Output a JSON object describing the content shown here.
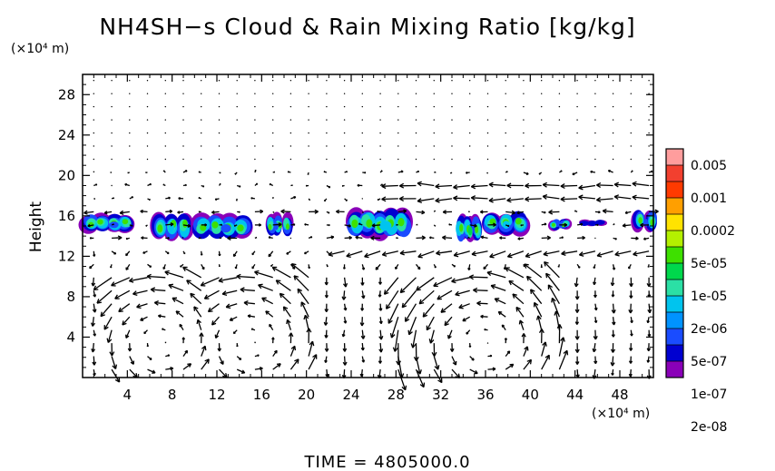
{
  "chart_data": {
    "type": "heatmap",
    "title": "NH4SH−s Cloud & Rain Mixing Ratio [kg/kg]",
    "x_unit": "(×10⁴ m)",
    "y_unit": "(×10⁴ m)",
    "ylabel": "Height",
    "xlim": [
      0,
      51
    ],
    "ylim": [
      0,
      30
    ],
    "x_ticks": [
      4,
      8,
      12,
      16,
      20,
      24,
      28,
      32,
      36,
      40,
      44,
      48
    ],
    "y_ticks": [
      4,
      8,
      12,
      16,
      20,
      24,
      28
    ],
    "grid": false,
    "colorbar": {
      "labels": [
        "0.005",
        "0.001",
        "0.0002",
        "5e-05",
        "1e-05",
        "2e-06",
        "5e-07",
        "1e-07",
        "2e-08"
      ],
      "colors": [
        "#ff9d9d",
        "#f2402f",
        "#ff3a00",
        "#ff9f00",
        "#ffe300",
        "#b4f000",
        "#3ee000",
        "#00d84c",
        "#2be0a5",
        "#00c4ee",
        "#0093ff",
        "#1a4cff",
        "#0000d0",
        "#8a00b8"
      ],
      "placement": "right"
    },
    "cloud_regions": [
      {
        "x": [
          0,
          4.5
        ],
        "y": [
          14.4,
          16.2
        ],
        "peak": "1e-05"
      },
      {
        "x": [
          6.5,
          9.5
        ],
        "y": [
          13.6,
          16.3
        ],
        "peak": "5e-05"
      },
      {
        "x": [
          10,
          15
        ],
        "y": [
          13.8,
          16.1
        ],
        "peak": "1e-05"
      },
      {
        "x": [
          16.5,
          18.5
        ],
        "y": [
          14.1,
          16.2
        ],
        "peak": "1e-05"
      },
      {
        "x": [
          23.5,
          29.5
        ],
        "y": [
          13.8,
          16.6
        ],
        "peak": "5e-05"
      },
      {
        "x": [
          33.5,
          35.5
        ],
        "y": [
          13.4,
          16.0
        ],
        "peak": "0.0002"
      },
      {
        "x": [
          36,
          39.5
        ],
        "y": [
          14.2,
          16.4
        ],
        "peak": "5e-05"
      },
      {
        "x": [
          42,
          43.3
        ],
        "y": [
          14.6,
          15.7
        ],
        "peak": "1e-05"
      },
      {
        "x": [
          44.5,
          46.5
        ],
        "y": [
          15.0,
          15.6
        ],
        "peak": "1e-07"
      },
      {
        "x": [
          49.5,
          51
        ],
        "y": [
          14.4,
          16.6
        ],
        "peak": "1e-05"
      }
    ],
    "wind_field": {
      "shown": true,
      "bands": [
        {
          "y": [
            17,
            19.5
          ],
          "x": [
            28,
            51
          ],
          "direction": "westward",
          "strength": "strong"
        },
        {
          "y": [
            15,
            16
          ],
          "x": [
            0,
            51
          ],
          "direction": "mixed",
          "strength": "strong"
        },
        {
          "y": [
            11.5,
            13
          ],
          "x": [
            22,
            51
          ],
          "direction": "westward",
          "strength": "strong"
        }
      ],
      "cells": [
        {
          "center_x": 7,
          "center_y": 3.5,
          "width": 6
        },
        {
          "center_x": 15,
          "center_y": 3.5,
          "width": 6
        },
        {
          "center_x": 36,
          "center_y": 3.5,
          "width": 8
        }
      ]
    }
  },
  "time_label": "TIME  =  4805000.0"
}
